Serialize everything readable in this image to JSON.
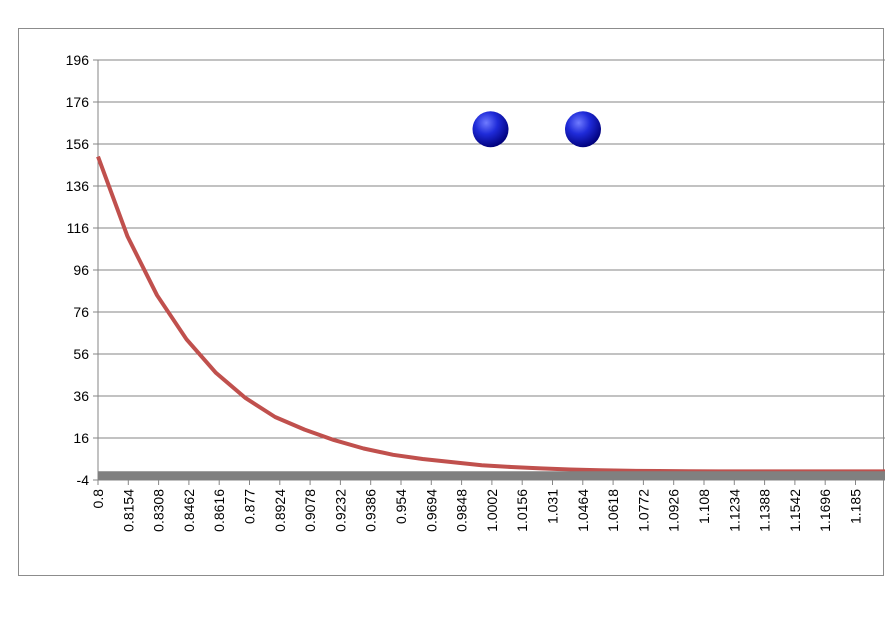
{
  "chart_data": {
    "type": "line",
    "title": "",
    "xlabel": "",
    "ylabel": "",
    "xlim": [
      0.8,
      1.2
    ],
    "ylim": [
      -4,
      196
    ],
    "y_ticks": [
      "196",
      "176",
      "156",
      "136",
      "116",
      "96",
      "76",
      "56",
      "36",
      "16",
      "-4"
    ],
    "x_tick_labels": [
      "0.8",
      "0.8154",
      "0.8308",
      "0.8462",
      "0.8616",
      "0.877",
      "0.8924",
      "0.9078",
      "0.9232",
      "0.9386",
      "0.954",
      "0.9694",
      "0.9848",
      "1.0002",
      "1.0156",
      "1.031",
      "1.0464",
      "1.0618",
      "1.0772",
      "1.0926",
      "1.108",
      "1.1234",
      "1.1388",
      "1.1542",
      "1.1696",
      "1.185"
    ],
    "x_tick_positions": [
      0.8,
      0.8154,
      0.8308,
      0.8462,
      0.8616,
      0.877,
      0.8924,
      0.9078,
      0.9232,
      0.9386,
      0.954,
      0.9694,
      0.9848,
      1.0002,
      1.0156,
      1.031,
      1.0464,
      1.0618,
      1.0772,
      1.0926,
      1.108,
      1.1234,
      1.1388,
      1.1542,
      1.1696,
      1.185
    ],
    "grid": true,
    "legend": "none",
    "series": [
      {
        "type": "line",
        "color": "#c0504d",
        "x": [
          0.8,
          0.815,
          0.83,
          0.845,
          0.86,
          0.875,
          0.89,
          0.905,
          0.92,
          0.935,
          0.95,
          0.965,
          0.98,
          0.995,
          1.01,
          1.025,
          1.04,
          1.055,
          1.07,
          1.085,
          1.1,
          1.115,
          1.13,
          1.145,
          1.16,
          1.175,
          1.19,
          1.2
        ],
        "y": [
          150,
          112,
          84,
          63,
          47,
          35,
          26,
          20,
          15,
          11,
          8,
          6,
          4.5,
          3,
          2.2,
          1.5,
          1,
          0.6,
          0.4,
          0.3,
          0.2,
          0.1,
          0.1,
          0.1,
          0.1,
          0.1,
          0.1,
          0.1
        ]
      },
      {
        "type": "line",
        "color": "#808080",
        "x": [
          0.8,
          1.2
        ],
        "y": [
          -2,
          -2
        ]
      },
      {
        "type": "scatter",
        "color": "#0000cc",
        "x": [
          0.9995,
          1.0465
        ],
        "y": [
          163,
          163
        ]
      }
    ]
  }
}
